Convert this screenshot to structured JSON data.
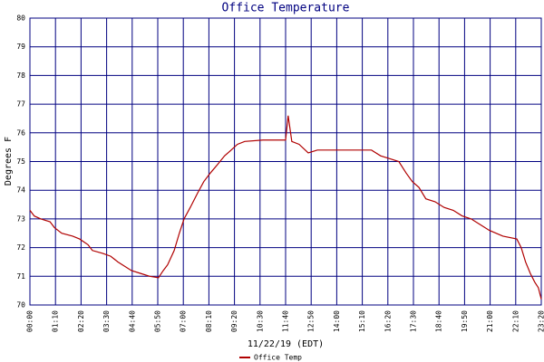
{
  "chart_data": {
    "type": "line",
    "title": "Office Temperature",
    "x_label": "11/22/19 (EDT)",
    "y_label": "Degrees F",
    "xlim": [
      0,
      1400
    ],
    "ylim": [
      70,
      80
    ],
    "xticks": [
      {
        "value": 0,
        "label": "00:00"
      },
      {
        "value": 70,
        "label": "01:10"
      },
      {
        "value": 140,
        "label": "02:20"
      },
      {
        "value": 210,
        "label": "03:30"
      },
      {
        "value": 280,
        "label": "04:40"
      },
      {
        "value": 350,
        "label": "05:50"
      },
      {
        "value": 420,
        "label": "07:00"
      },
      {
        "value": 490,
        "label": "08:10"
      },
      {
        "value": 560,
        "label": "09:20"
      },
      {
        "value": 630,
        "label": "10:30"
      },
      {
        "value": 700,
        "label": "11:40"
      },
      {
        "value": 770,
        "label": "12:50"
      },
      {
        "value": 840,
        "label": "14:00"
      },
      {
        "value": 910,
        "label": "15:10"
      },
      {
        "value": 980,
        "label": "16:20"
      },
      {
        "value": 1050,
        "label": "17:30"
      },
      {
        "value": 1120,
        "label": "18:40"
      },
      {
        "value": 1190,
        "label": "19:50"
      },
      {
        "value": 1260,
        "label": "21:00"
      },
      {
        "value": 1330,
        "label": "22:10"
      },
      {
        "value": 1400,
        "label": "23:20"
      }
    ],
    "yticks": [
      70,
      71,
      72,
      73,
      74,
      75,
      76,
      77,
      78,
      79,
      80
    ],
    "grid": true,
    "legend": "bottom",
    "series": [
      {
        "name": "Office Temp",
        "color": "#b00000",
        "x": [
          0,
          12,
          30,
          55,
          67,
          87,
          117,
          136,
          159,
          171,
          199,
          221,
          241,
          278,
          303,
          328,
          352,
          365,
          377,
          395,
          409,
          422,
          439,
          459,
          476,
          494,
          514,
          533,
          551,
          568,
          588,
          638,
          700,
          707,
          717,
          737,
          762,
          787,
          861,
          935,
          960,
          985,
          1010,
          1030,
          1047,
          1065,
          1084,
          1109,
          1134,
          1159,
          1184,
          1208,
          1233,
          1258,
          1295,
          1333,
          1345,
          1357,
          1370,
          1382,
          1392,
          1400
        ],
        "values": [
          73.3,
          73.1,
          73.0,
          72.9,
          72.7,
          72.5,
          72.4,
          72.3,
          72.1,
          71.9,
          71.8,
          71.7,
          71.5,
          71.2,
          71.1,
          71.0,
          70.95,
          71.2,
          71.4,
          71.9,
          72.5,
          73.0,
          73.4,
          73.9,
          74.3,
          74.6,
          74.9,
          75.2,
          75.4,
          75.6,
          75.7,
          75.75,
          75.75,
          76.6,
          75.7,
          75.6,
          75.3,
          75.4,
          75.4,
          75.4,
          75.2,
          75.1,
          75.0,
          74.6,
          74.3,
          74.1,
          73.7,
          73.6,
          73.4,
          73.3,
          73.1,
          73.0,
          72.8,
          72.6,
          72.4,
          72.3,
          72.0,
          71.5,
          71.1,
          70.8,
          70.6,
          70.2
        ]
      }
    ]
  }
}
